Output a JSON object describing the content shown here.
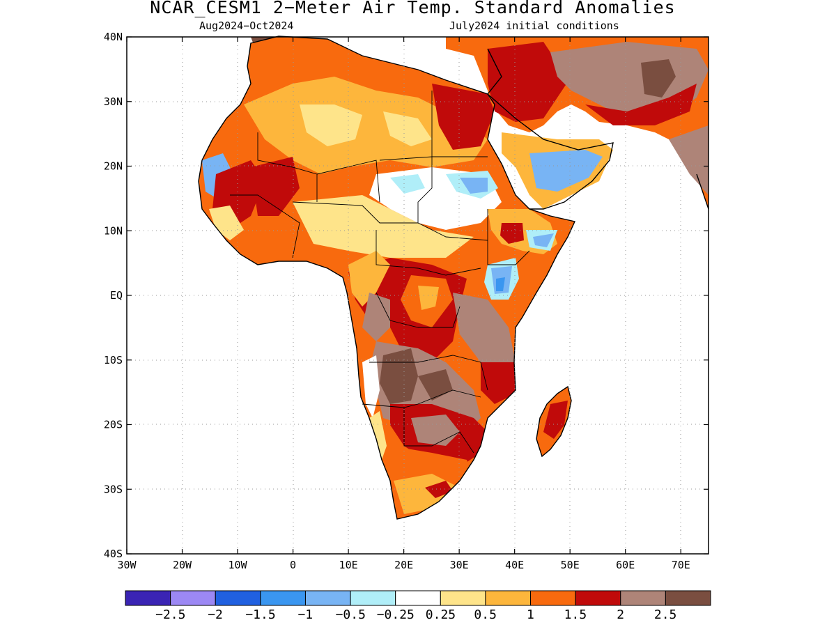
{
  "title": "NCAR_CESM1 2−Meter Air Temp. Standard Anomalies",
  "subtitle_left": "Aug2024−Oct2024",
  "subtitle_right": "July2024 initial conditions",
  "map": {
    "lon_range": [
      -30,
      75
    ],
    "lat_range": [
      -40,
      40
    ],
    "x_ticks": [
      "30W",
      "20W",
      "10W",
      "0",
      "10E",
      "20E",
      "30E",
      "40E",
      "50E",
      "60E",
      "70E"
    ],
    "y_ticks": [
      "40N",
      "30N",
      "20N",
      "10N",
      "EQ",
      "10S",
      "20S",
      "30S",
      "40S"
    ],
    "grid": "dotted"
  },
  "colorbar": {
    "colors": [
      "#3a24b4",
      "#9c88f4",
      "#2060e0",
      "#3a96f0",
      "#78b4f4",
      "#b0eef8",
      "#ffffff",
      "#fee48a",
      "#fdb63c",
      "#f86a0e",
      "#c00a0a",
      "#ae8478",
      "#7a4e40"
    ],
    "labels": [
      "−2.5",
      "−2",
      "−1.5",
      "−1",
      "−0.5",
      "−0.25",
      "0.25",
      "0.5",
      "1",
      "1.5",
      "2",
      "2.5"
    ]
  }
}
